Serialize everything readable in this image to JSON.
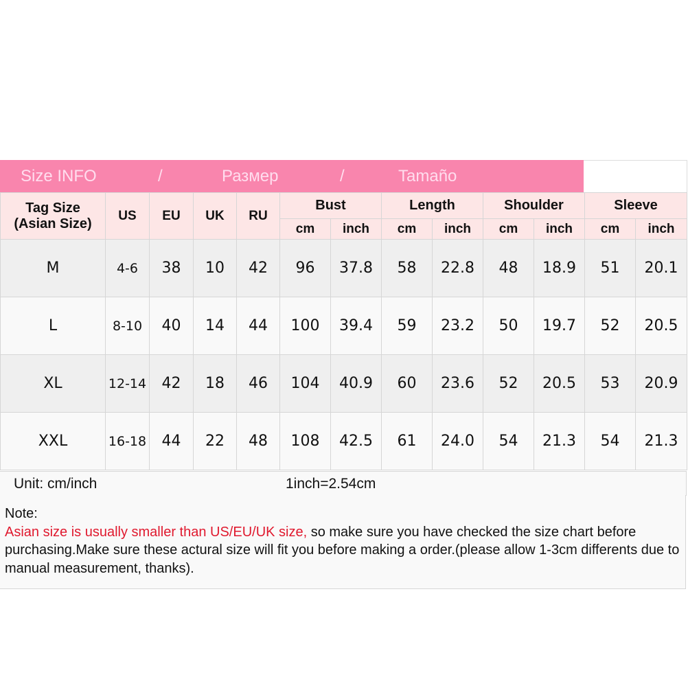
{
  "banner": {
    "title_en": "Size INFO",
    "sep1": "/",
    "title_ru": "Размер",
    "sep2": "/",
    "title_es": "Tamaño"
  },
  "colors": {
    "banner": "#f985ad",
    "header_bg": "#fde6e6",
    "warning_text": "#e0192e"
  },
  "header": {
    "tag_size": "Tag Size",
    "tag_size_sub": "(Asian Size)",
    "us": "US",
    "eu": "EU",
    "uk": "UK",
    "ru": "RU",
    "bust": "Bust",
    "length": "Length",
    "shoulder": "Shoulder",
    "sleeve": "Sleeve",
    "cm": "cm",
    "inch": "inch"
  },
  "rows": [
    {
      "tag": "M",
      "us": "4-6",
      "eu": "38",
      "uk": "10",
      "ru": "42",
      "bust_cm": "96",
      "bust_in": "37.8",
      "len_cm": "58",
      "len_in": "22.8",
      "sh_cm": "48",
      "sh_in": "18.9",
      "sl_cm": "51",
      "sl_in": "20.1"
    },
    {
      "tag": "L",
      "us": "8-10",
      "eu": "40",
      "uk": "14",
      "ru": "44",
      "bust_cm": "100",
      "bust_in": "39.4",
      "len_cm": "59",
      "len_in": "23.2",
      "sh_cm": "50",
      "sh_in": "19.7",
      "sl_cm": "52",
      "sl_in": "20.5"
    },
    {
      "tag": "XL",
      "us": "12-14",
      "eu": "42",
      "uk": "18",
      "ru": "46",
      "bust_cm": "104",
      "bust_in": "40.9",
      "len_cm": "60",
      "len_in": "23.6",
      "sh_cm": "52",
      "sh_in": "20.5",
      "sl_cm": "53",
      "sl_in": "20.9"
    },
    {
      "tag": "XXL",
      "us": "16-18",
      "eu": "44",
      "uk": "22",
      "ru": "48",
      "bust_cm": "108",
      "bust_in": "42.5",
      "len_cm": "61",
      "len_in": "24.0",
      "sh_cm": "54",
      "sh_in": "21.3",
      "sl_cm": "54",
      "sl_in": "21.3"
    }
  ],
  "unit": {
    "label": "Unit: cm/inch",
    "conversion": "1inch=2.54cm"
  },
  "note": {
    "title": "Note:",
    "warning": "Asian size is usually smaller than US/EU/UK size,",
    "body": " so make sure you have checked the size chart before purchasing.Make sure these actural size will fit you before making a order.(please allow 1-3cm differents due to manual measurement, thanks)."
  }
}
